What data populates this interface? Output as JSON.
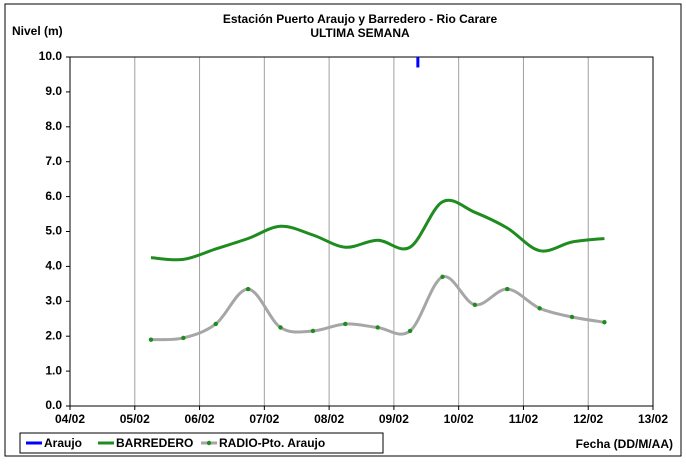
{
  "chart_data": {
    "type": "line",
    "title": "Estación Puerto Araujo y Barredero - Rio Carare",
    "subtitle": "ULTIMA SEMANA",
    "y_label": "Nivel (m)",
    "x_label": "Fecha (DD/M/AA)",
    "xlim": [
      4,
      13
    ],
    "xticks": [
      {
        "value": 4,
        "label": "04/02"
      },
      {
        "value": 5,
        "label": "05/02"
      },
      {
        "value": 6,
        "label": "06/02"
      },
      {
        "value": 7,
        "label": "07/02"
      },
      {
        "value": 8,
        "label": "08/02"
      },
      {
        "value": 9,
        "label": "09/02"
      },
      {
        "value": 10,
        "label": "10/02"
      },
      {
        "value": 11,
        "label": "11/02"
      },
      {
        "value": 12,
        "label": "12/02"
      },
      {
        "value": 13,
        "label": "13/02"
      }
    ],
    "ylim": [
      0,
      10
    ],
    "yticks": [
      {
        "value": 0,
        "label": "0.0"
      },
      {
        "value": 1,
        "label": "1.0"
      },
      {
        "value": 2,
        "label": "2.0"
      },
      {
        "value": 3,
        "label": "3.0"
      },
      {
        "value": 4,
        "label": "4.0"
      },
      {
        "value": 5,
        "label": "5.0"
      },
      {
        "value": 6,
        "label": "6.0"
      },
      {
        "value": 7,
        "label": "7.0"
      },
      {
        "value": 8,
        "label": "8.0"
      },
      {
        "value": 9,
        "label": "9.0"
      },
      {
        "value": 10,
        "label": "10.0"
      }
    ],
    "grid": "x",
    "legend": "bottom",
    "series": [
      {
        "name": "Araujo",
        "color": "#0000ff",
        "markers": false,
        "x": [
          9.37,
          9.37
        ],
        "values": [
          10.0,
          9.7
        ]
      },
      {
        "name": "BARREDERO",
        "color": "#1e8c1e",
        "markers": false,
        "x": [
          5.25,
          5.75,
          6.25,
          6.75,
          7.25,
          7.75,
          8.25,
          8.75,
          9.25,
          9.75,
          10.25,
          10.75,
          11.25,
          11.75,
          12.25
        ],
        "values": [
          4.25,
          4.2,
          4.5,
          4.8,
          5.15,
          4.9,
          4.55,
          4.75,
          4.55,
          5.85,
          5.55,
          5.1,
          4.45,
          4.7,
          4.8
        ]
      },
      {
        "name": "RADIO-Pto. Araujo",
        "color": "#a6a6a6",
        "marker_color": "#1e8c1e",
        "markers": true,
        "x": [
          5.25,
          5.75,
          6.25,
          6.75,
          7.25,
          7.75,
          8.25,
          8.75,
          9.25,
          9.75,
          10.25,
          10.75,
          11.25,
          11.75,
          12.25
        ],
        "values": [
          1.9,
          1.95,
          2.35,
          3.35,
          2.25,
          2.15,
          2.35,
          2.25,
          2.15,
          3.7,
          2.9,
          3.35,
          2.8,
          2.55,
          2.4
        ]
      }
    ]
  }
}
